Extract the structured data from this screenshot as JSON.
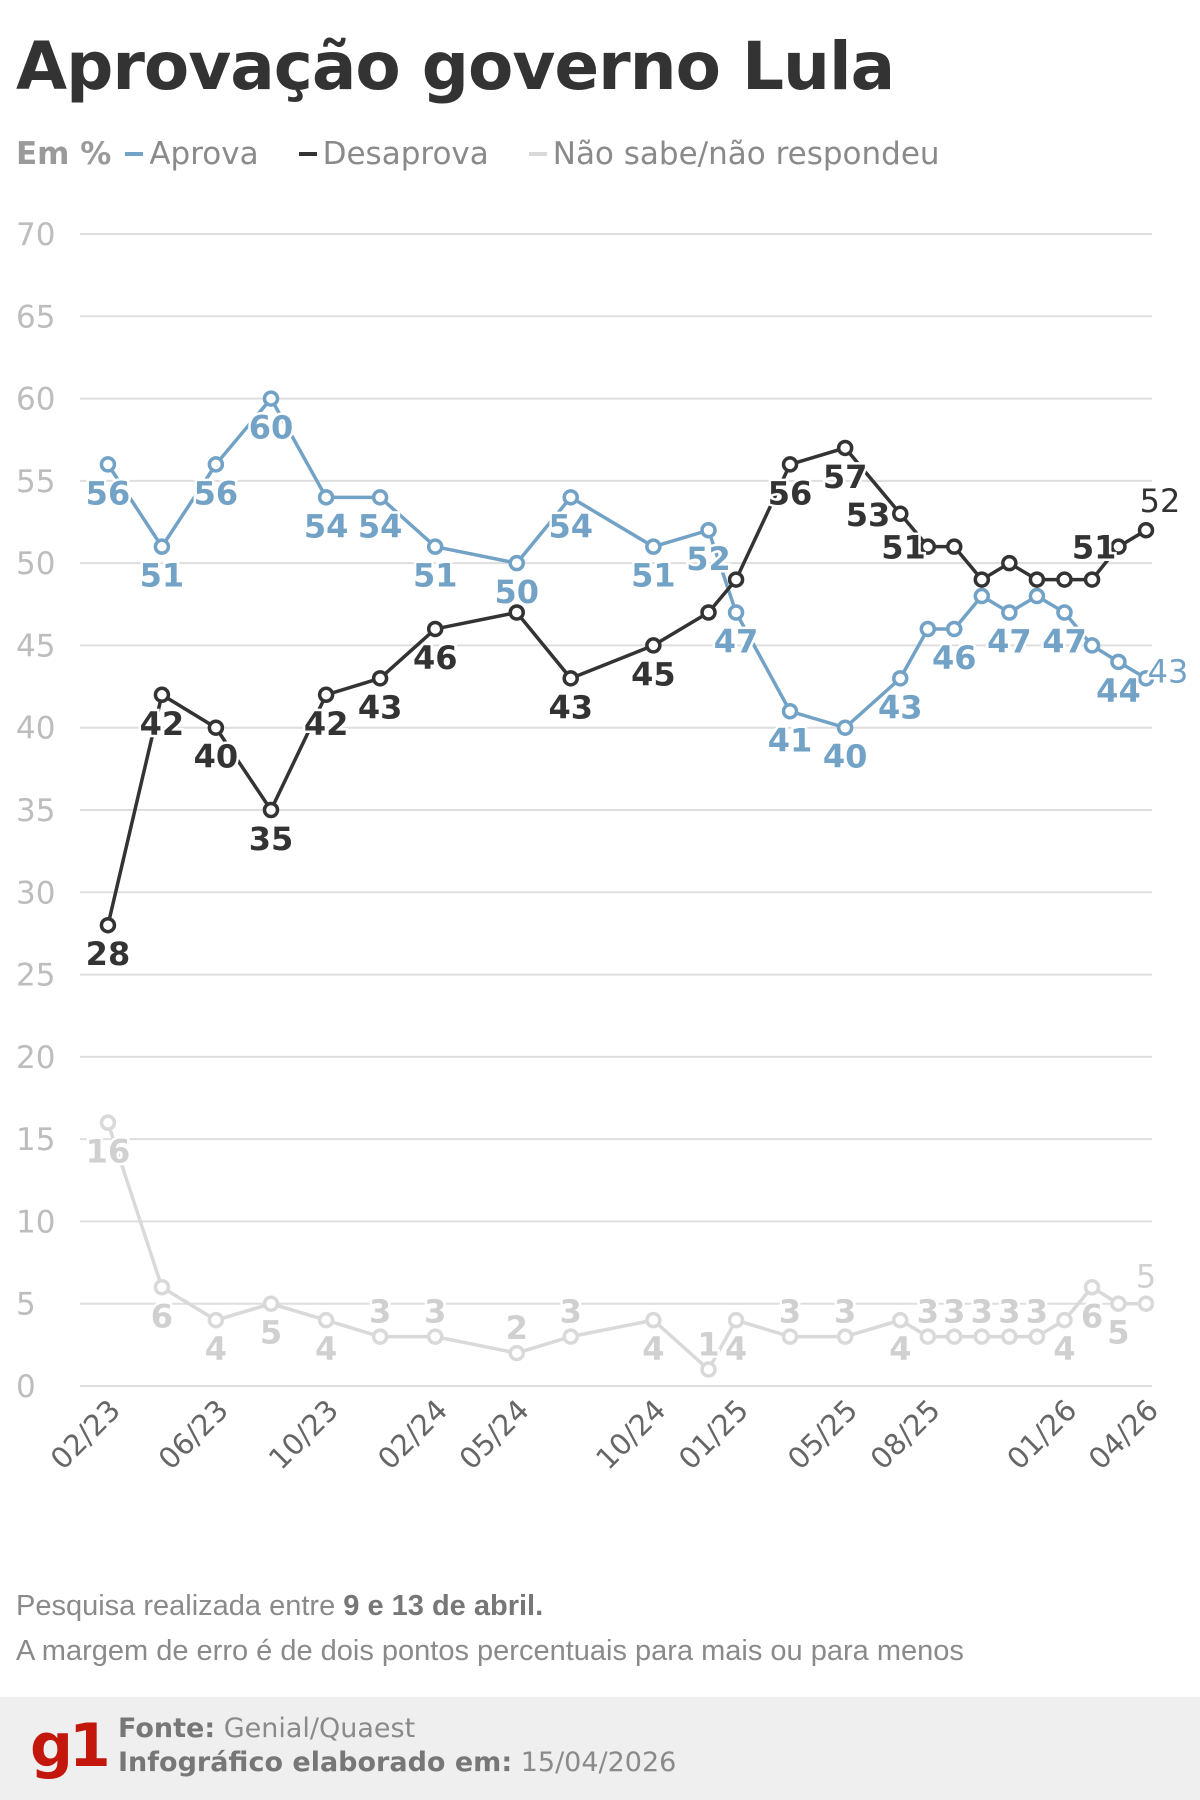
{
  "title": "Aprovação governo Lula",
  "legend": {
    "unit": "Em %",
    "items": [
      {
        "label": "Aprova",
        "color": "#72a2c6"
      },
      {
        "label": "Desaprova",
        "color": "#333333"
      },
      {
        "label": "Não sabe/não respondeu",
        "color": "#d9d9d9"
      }
    ]
  },
  "chart_data": {
    "type": "line",
    "ylim": [
      0,
      70
    ],
    "yticks": [
      0,
      5,
      10,
      15,
      20,
      25,
      30,
      35,
      40,
      45,
      50,
      55,
      60,
      65,
      70
    ],
    "grid": true,
    "x": [
      "02/23",
      "",
      "06/23",
      "",
      "10/23",
      "",
      "02/24",
      "05/24",
      "",
      "10/24",
      "",
      "01/25",
      "",
      "05/25",
      "",
      "08/25",
      "",
      "",
      "",
      "",
      "01/26",
      "",
      "",
      "04/26"
    ],
    "series": [
      {
        "name": "Aprova",
        "color": "#72a2c6",
        "values": [
          56,
          51,
          56,
          60,
          54,
          54,
          51,
          50,
          54,
          51,
          52,
          47,
          41,
          40,
          43,
          46,
          46,
          48,
          47,
          48,
          47,
          45,
          44,
          43
        ],
        "labels": [
          56,
          51,
          56,
          60,
          54,
          54,
          51,
          50,
          54,
          51,
          52,
          47,
          41,
          40,
          43,
          null,
          46,
          null,
          47,
          null,
          47,
          null,
          44,
          43
        ]
      },
      {
        "name": "Desaprova",
        "color": "#333333",
        "values": [
          28,
          42,
          40,
          35,
          42,
          43,
          46,
          47,
          43,
          45,
          47,
          49,
          56,
          57,
          53,
          51,
          51,
          49,
          50,
          49,
          49,
          49,
          51,
          52
        ],
        "labels": [
          28,
          42,
          40,
          35,
          42,
          43,
          46,
          null,
          43,
          45,
          null,
          null,
          56,
          57,
          53,
          51,
          null,
          null,
          null,
          null,
          null,
          null,
          51,
          52
        ]
      },
      {
        "name": "Não sabe/não respondeu",
        "color": "#d9d9d9",
        "values": [
          16,
          6,
          4,
          5,
          4,
          3,
          3,
          2,
          3,
          4,
          1,
          4,
          3,
          3,
          4,
          3,
          3,
          3,
          3,
          3,
          4,
          6,
          5,
          5
        ],
        "labels": [
          16,
          6,
          4,
          5,
          4,
          3,
          3,
          2,
          3,
          4,
          1,
          4,
          3,
          3,
          4,
          3,
          3,
          3,
          3,
          3,
          4,
          6,
          5,
          5
        ]
      }
    ]
  },
  "notes": {
    "line1_pre": "Pesquisa realizada entre ",
    "line1_bold": "9 e 13 de abril.",
    "line2": "A margem de erro é de dois pontos percentuais para mais ou para menos"
  },
  "footer": {
    "logo": "g1",
    "source_label": "Fonte:",
    "source": "Genial/Quaest",
    "made_label": "Infográfico elaborado em:",
    "made_date": "15/04/2026"
  }
}
